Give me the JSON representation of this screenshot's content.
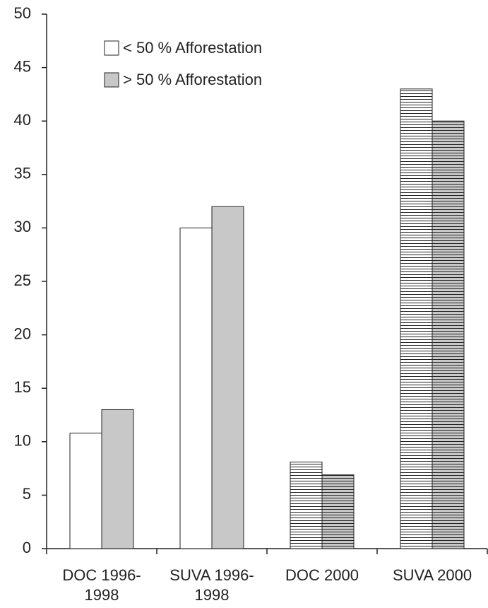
{
  "chart_data": {
    "type": "bar",
    "categories": [
      "DOC 1996-1998",
      "SUVA 1996-1998",
      "DOC 2000",
      "SUVA 2000"
    ],
    "series": [
      {
        "name": "< 50 % Afforestation",
        "color": "#ffffff",
        "values": [
          10.8,
          30,
          8.1,
          43
        ]
      },
      {
        "name": "> 50 % Afforestation",
        "color": "#c8c8c8",
        "values": [
          13,
          32,
          6.9,
          40
        ]
      }
    ],
    "hatch": [
      false,
      false,
      true,
      true
    ],
    "ylim": [
      0,
      50
    ],
    "yticks": [
      0,
      5,
      10,
      15,
      20,
      25,
      30,
      35,
      40,
      45,
      50
    ],
    "grid": false,
    "legend": "top-left"
  }
}
